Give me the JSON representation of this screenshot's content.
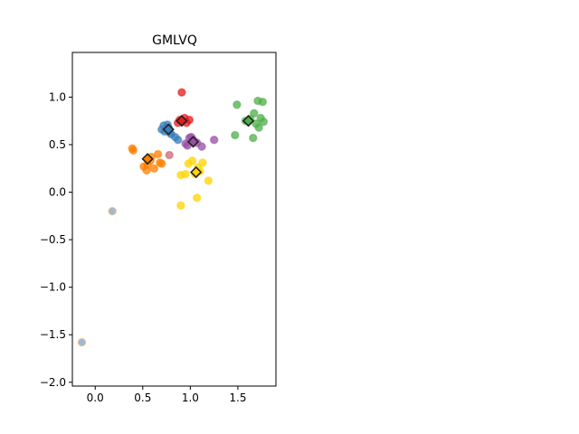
{
  "chart_data": {
    "type": "scatter",
    "title": "GMLVQ",
    "xlabel": "",
    "ylabel": "",
    "xlim": [
      -0.24,
      1.9
    ],
    "ylim": [
      -2.04,
      1.47
    ],
    "xticks": [
      0.0,
      0.5,
      1.0,
      1.5
    ],
    "xtick_labels": [
      "0.0",
      "0.5",
      "1.0",
      "1.5"
    ],
    "yticks": [
      -2.0,
      -1.5,
      -1.0,
      -0.5,
      0.0,
      0.5,
      1.0
    ],
    "ytick_labels": [
      "−2.0",
      "−1.5",
      "−1.0",
      "−0.5",
      "0.0",
      "0.5",
      "1.0"
    ],
    "grid": false,
    "legend": "none",
    "series": [
      {
        "color": "#e41a1c",
        "points": [
          [
            0.91,
            1.05
          ],
          [
            0.87,
            0.73
          ],
          [
            0.94,
            0.78
          ],
          [
            0.99,
            0.76
          ],
          [
            0.96,
            0.73
          ],
          [
            0.89,
            0.76
          ]
        ]
      },
      {
        "color": "#377eb8",
        "points": [
          [
            0.72,
            0.7
          ],
          [
            0.76,
            0.71
          ],
          [
            0.73,
            0.64
          ],
          [
            0.78,
            0.63
          ],
          [
            0.8,
            0.61
          ],
          [
            0.84,
            0.58
          ],
          [
            0.87,
            0.55
          ],
          [
            0.77,
            0.68
          ],
          [
            0.7,
            0.66
          ]
        ]
      },
      {
        "color": "#4daf4a",
        "points": [
          [
            1.49,
            0.92
          ],
          [
            1.71,
            0.96
          ],
          [
            1.76,
            0.95
          ],
          [
            1.74,
            0.78
          ],
          [
            1.67,
            0.83
          ],
          [
            1.77,
            0.74
          ],
          [
            1.58,
            0.75
          ],
          [
            1.63,
            0.77
          ],
          [
            1.72,
            0.68
          ],
          [
            1.47,
            0.6
          ],
          [
            1.66,
            0.57
          ],
          [
            1.69,
            0.72
          ]
        ]
      },
      {
        "color": "#984ea3",
        "points": [
          [
            0.95,
            0.51
          ],
          [
            0.99,
            0.57
          ],
          [
            1.03,
            0.55
          ],
          [
            1.07,
            0.52
          ],
          [
            1.12,
            0.48
          ],
          [
            1.25,
            0.55
          ],
          [
            0.97,
            0.49
          ],
          [
            1.01,
            0.58
          ]
        ]
      },
      {
        "color": "#ff7f00",
        "points": [
          [
            0.39,
            0.46
          ],
          [
            0.4,
            0.44
          ],
          [
            0.51,
            0.27
          ],
          [
            0.54,
            0.23
          ],
          [
            0.55,
            0.29
          ],
          [
            0.59,
            0.37
          ],
          [
            0.62,
            0.25
          ],
          [
            0.66,
            0.4
          ],
          [
            0.68,
            0.31
          ],
          [
            0.7,
            0.3
          ],
          [
            0.58,
            0.33
          ]
        ]
      },
      {
        "color": "#ffd400",
        "points": [
          [
            0.9,
            0.18
          ],
          [
            0.98,
            0.3
          ],
          [
            1.02,
            0.33
          ],
          [
            1.08,
            0.26
          ],
          [
            1.13,
            0.31
          ],
          [
            1.1,
            0.22
          ],
          [
            1.19,
            0.12
          ],
          [
            1.07,
            -0.06
          ],
          [
            0.9,
            -0.14
          ],
          [
            1.05,
            0.19
          ],
          [
            0.95,
            0.19
          ]
        ]
      },
      {
        "color": "#cc6677",
        "points": [
          [
            0.78,
            0.39
          ]
        ]
      },
      {
        "color": "#7aa6cc",
        "edge": "#f2a65a",
        "points": [
          [
            0.18,
            -0.2
          ],
          [
            -0.14,
            -1.58
          ]
        ]
      }
    ],
    "prototypes": [
      {
        "x": 0.91,
        "y": 0.75,
        "color": "#e41a1c"
      },
      {
        "x": 0.77,
        "y": 0.66,
        "color": "#377eb8"
      },
      {
        "x": 1.61,
        "y": 0.75,
        "color": "#4daf4a"
      },
      {
        "x": 1.03,
        "y": 0.53,
        "color": "#984ea3"
      },
      {
        "x": 0.55,
        "y": 0.35,
        "color": "#ff7f00"
      },
      {
        "x": 1.06,
        "y": 0.21,
        "color": "#ffd400"
      }
    ]
  }
}
